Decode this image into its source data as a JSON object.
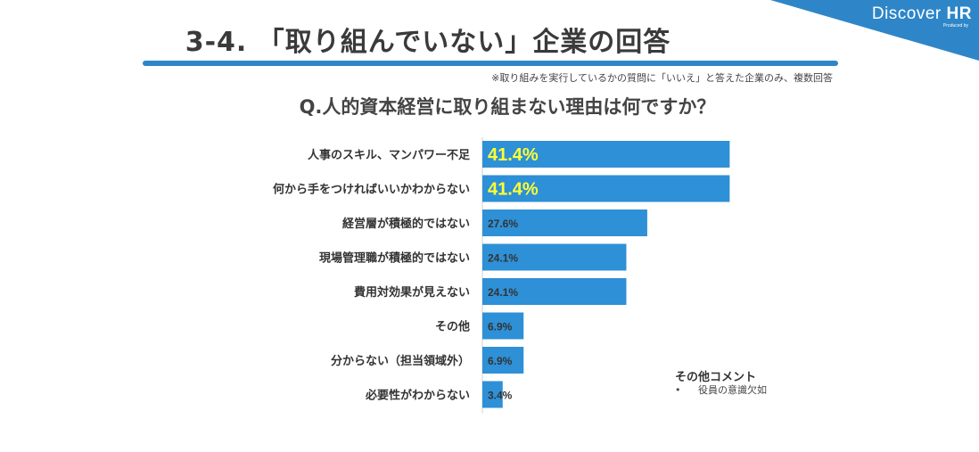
{
  "brand": {
    "main": "Discover ",
    "main_bold": "HR",
    "sub": "Produced by"
  },
  "page": {
    "title": "3-4. 「取り組んでいない」企業の回答",
    "note": "※取り組みを実行しているかの質問に「いいえ」と答えた企業のみ、複数回答",
    "question": "Q.人的資本経営に取り組まない理由は何ですか？"
  },
  "colors": {
    "bar": "#2e90d6",
    "highlight_label": "#ffff33",
    "banner": "#2e86c8",
    "label": "#333333"
  },
  "chart_data": {
    "type": "bar",
    "orientation": "horizontal",
    "unit": "%",
    "categories": [
      "人事のスキル、マンパワー不足",
      "何から手をつければいいかわからない",
      "経営層が積極的ではない",
      "現場管理職が積極的ではない",
      "費用対効果が見えない",
      "その他",
      "分からない（担当領域外）",
      "必要性がわからない"
    ],
    "values": [
      41.4,
      41.4,
      27.6,
      24.1,
      24.1,
      6.9,
      6.9,
      3.4
    ],
    "value_labels": [
      "41.4%",
      "41.4%",
      "27.6%",
      "24.1%",
      "24.1%",
      "6.9%",
      "6.9%",
      "3.4%"
    ],
    "highlighted": [
      true,
      true,
      false,
      false,
      false,
      false,
      false,
      false
    ],
    "xlim": [
      0,
      100
    ],
    "grid": false,
    "legend": "none"
  },
  "comments": {
    "title": "その他コメント",
    "bullet": "•",
    "items": [
      "役員の意識欠如"
    ]
  }
}
